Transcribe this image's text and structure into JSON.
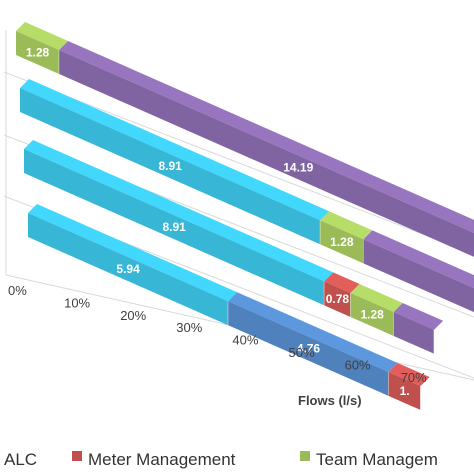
{
  "chart_data": {
    "type": "bar",
    "orientation": "horizontal",
    "stacked": "100%",
    "style": "3d",
    "xlabel": "Flows (l/s)",
    "x_ticks": [
      "0%",
      "10%",
      "20%",
      "30%",
      "40%",
      "50%",
      "60%",
      "70%"
    ],
    "xlim": [
      0,
      100
    ],
    "grid": true,
    "legend_position": "bottom",
    "legend_visible": [
      {
        "label": "ALC",
        "color": "#38b6d6"
      },
      {
        "label": "Meter Management",
        "color": "#c0504d"
      },
      {
        "label": "Team Managem",
        "color": "#9bbb59"
      }
    ],
    "bars": [
      {
        "segments": [
          {
            "value": 1.28,
            "label": "1.28",
            "color": "#9bbb59"
          },
          {
            "value": 14.19,
            "label": "14.19",
            "color": "#8064a2"
          }
        ]
      },
      {
        "segments": [
          {
            "value": 8.91,
            "label": "8.91",
            "color": "#38b6d6"
          },
          {
            "value": 1.28,
            "label": "1.28",
            "color": "#9bbb59"
          },
          {
            "value": 4.5,
            "label": "",
            "color": "#8064a2"
          }
        ]
      },
      {
        "segments": [
          {
            "value": 8.91,
            "label": "8.91",
            "color": "#38b6d6"
          },
          {
            "value": 0.78,
            "label": "0.78",
            "color": "#c0504d"
          },
          {
            "value": 1.28,
            "label": "1.28",
            "color": "#9bbb59"
          },
          {
            "value": 1.2,
            "label": "",
            "color": "#8064a2"
          }
        ]
      },
      {
        "segments": [
          {
            "value": 5.94,
            "label": "5.94",
            "color": "#38b6d6"
          },
          {
            "value": 4.76,
            "label": "4.76",
            "color": "#4f81bd"
          },
          {
            "value": 0.95,
            "label": "1.",
            "color": "#c0504d"
          }
        ]
      }
    ]
  }
}
